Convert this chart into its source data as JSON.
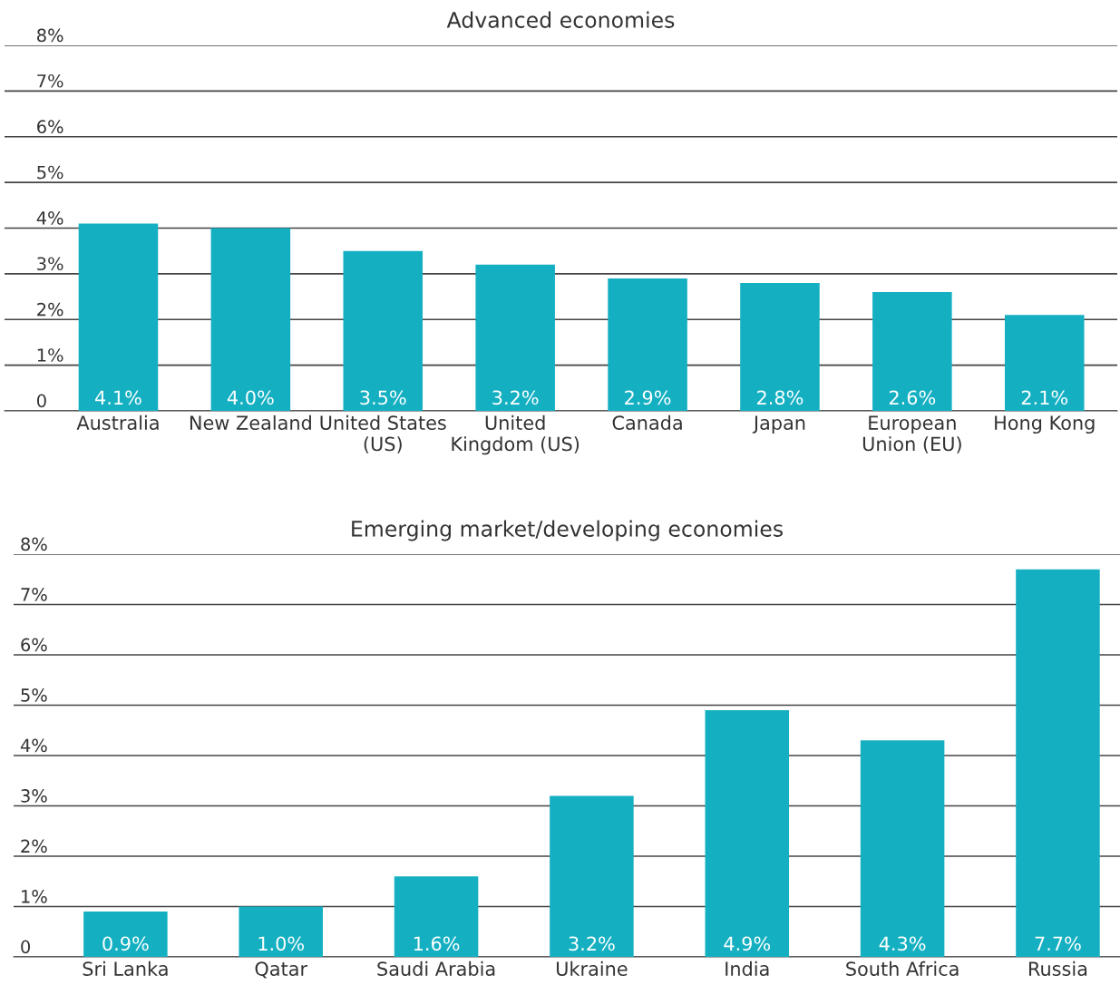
{
  "chart_data": [
    {
      "type": "bar",
      "title": "Advanced economies",
      "categories": [
        "Australia",
        "New Zealand",
        "United States\n(US)",
        "United\nKingdom (US)",
        "Canada",
        "Japan",
        "European\nUnion (EU)",
        "Hong Kong"
      ],
      "values": [
        4.1,
        4.0,
        3.5,
        3.2,
        2.9,
        2.8,
        2.6,
        2.1
      ],
      "value_labels": [
        "4.1%",
        "4.0%",
        "3.5%",
        "3.2%",
        "2.9%",
        "2.8%",
        "2.6%",
        "2.1%"
      ],
      "color": "#14b0c2",
      "ylim": [
        0,
        8
      ],
      "yticks": [
        0,
        {
          "value": 1,
          "label": "1%"
        },
        {
          "value": 2,
          "label": "2%"
        },
        {
          "value": 3,
          "label": "3%"
        },
        {
          "value": 4,
          "label": "4%"
        },
        {
          "value": 5,
          "label": "5%"
        },
        {
          "value": 6,
          "label": "6%"
        },
        {
          "value": 7,
          "label": "7%"
        },
        {
          "value": 8,
          "label": "8%"
        }
      ],
      "grid": "y"
    },
    {
      "type": "bar",
      "title": "Emerging market/developing economies",
      "categories": [
        "Sri Lanka",
        "Qatar",
        "Saudi Arabia",
        "Ukraine",
        "India",
        "South Africa",
        "Russia"
      ],
      "values": [
        0.9,
        1.0,
        1.6,
        3.2,
        4.9,
        4.3,
        7.7
      ],
      "value_labels": [
        "0.9%",
        "1.0%",
        "1.6%",
        "3.2%",
        "4.9%",
        "4.3%",
        "7.7%"
      ],
      "color": "#14b0c2",
      "ylim": [
        0,
        8
      ],
      "yticks": [
        0,
        {
          "value": 1,
          "label": "1%"
        },
        {
          "value": 2,
          "label": "2%"
        },
        {
          "value": 3,
          "label": "3%"
        },
        {
          "value": 4,
          "label": "4%"
        },
        {
          "value": 5,
          "label": "5%"
        },
        {
          "value": 6,
          "label": "6%"
        },
        {
          "value": 7,
          "label": "7%"
        },
        {
          "value": 8,
          "label": "8%"
        }
      ],
      "grid": "y"
    }
  ]
}
